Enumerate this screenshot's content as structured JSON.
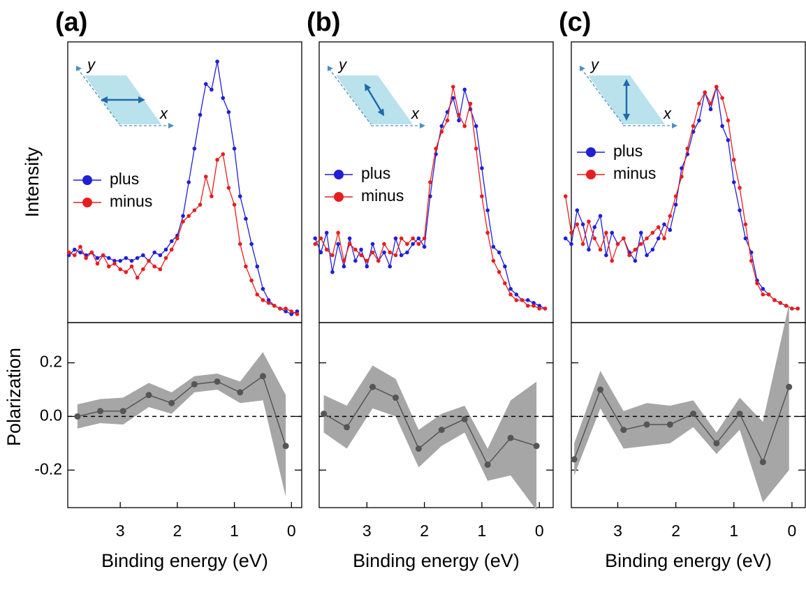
{
  "chart_data": [
    {
      "type": "line",
      "title": "(a)",
      "ylabel": "Intensity",
      "legend": "left",
      "annotations": [
        "y",
        "x"
      ],
      "xlim": [
        3.92,
        -0.18
      ],
      "ylim": [
        0,
        1
      ],
      "x": [
        3.9,
        3.8,
        3.7,
        3.6,
        3.5,
        3.4,
        3.3,
        3.2,
        3.1,
        3.0,
        2.9,
        2.8,
        2.7,
        2.6,
        2.5,
        2.4,
        2.3,
        2.2,
        2.1,
        2.0,
        1.9,
        1.8,
        1.7,
        1.6,
        1.5,
        1.4,
        1.3,
        1.2,
        1.1,
        1.0,
        0.9,
        0.8,
        0.7,
        0.6,
        0.5,
        0.4,
        0.3,
        0.2,
        0.1,
        0.0,
        -0.1
      ],
      "series": [
        {
          "name": "plus",
          "color": "#1f1fd6",
          "values": [
            0.24,
            0.26,
            0.25,
            0.24,
            0.25,
            0.23,
            0.24,
            0.23,
            0.22,
            0.22,
            0.23,
            0.22,
            0.23,
            0.24,
            0.22,
            0.25,
            0.24,
            0.26,
            0.29,
            0.31,
            0.38,
            0.5,
            0.62,
            0.74,
            0.85,
            0.83,
            0.93,
            0.8,
            0.75,
            0.62,
            0.45,
            0.37,
            0.28,
            0.2,
            0.12,
            0.08,
            0.06,
            0.05,
            0.04,
            0.03,
            0.04
          ]
        },
        {
          "name": "minus",
          "color": "#e61e1e",
          "values": [
            0.25,
            0.24,
            0.27,
            0.23,
            0.25,
            0.21,
            0.24,
            0.2,
            0.21,
            0.19,
            0.18,
            0.2,
            0.16,
            0.19,
            0.22,
            0.2,
            0.19,
            0.23,
            0.26,
            0.3,
            0.36,
            0.38,
            0.4,
            0.42,
            0.52,
            0.45,
            0.58,
            0.6,
            0.48,
            0.42,
            0.28,
            0.2,
            0.15,
            0.1,
            0.08,
            0.07,
            0.06,
            0.05,
            0.05,
            0.04,
            0.03
          ]
        }
      ]
    },
    {
      "type": "errorband",
      "ylabel": "Polarization",
      "xlabel": "Binding energy (eV)",
      "color": "#555555",
      "band_color": "#a6a6a6",
      "xlim": [
        3.92,
        -0.18
      ],
      "ylim": [
        -0.34,
        0.35
      ],
      "xticks": [
        3,
        2,
        1,
        0
      ],
      "yticks": [
        -0.2,
        {
          "value": 0,
          "label": "0.0"
        },
        0.2
      ],
      "hline": 0,
      "x": [
        3.75,
        3.35,
        2.95,
        2.5,
        2.1,
        1.7,
        1.3,
        0.9,
        0.5,
        0.1
      ],
      "values": [
        0,
        0.02,
        0.02,
        0.08,
        0.05,
        0.12,
        0.13,
        0.09,
        0.15,
        -0.11
      ],
      "error": [
        0.045,
        0.045,
        0.05,
        0.045,
        0.04,
        0.03,
        0.03,
        0.04,
        0.09,
        0.19
      ]
    },
    {
      "type": "line",
      "title": "(b)",
      "legend": "left",
      "annotations": [
        "y",
        "x"
      ],
      "xlim": [
        3.83,
        -0.24
      ],
      "ylim": [
        0,
        1
      ],
      "x": [
        3.9,
        3.8,
        3.7,
        3.6,
        3.5,
        3.4,
        3.3,
        3.2,
        3.1,
        3.0,
        2.9,
        2.8,
        2.7,
        2.6,
        2.5,
        2.4,
        2.3,
        2.2,
        2.1,
        2.0,
        1.9,
        1.8,
        1.7,
        1.6,
        1.5,
        1.4,
        1.3,
        1.2,
        1.1,
        1.0,
        0.9,
        0.8,
        0.7,
        0.6,
        0.5,
        0.4,
        0.3,
        0.2,
        0.1,
        0.0,
        -0.1
      ],
      "series": [
        {
          "name": "plus",
          "color": "#1f1fd6",
          "values": [
            0.3,
            0.25,
            0.32,
            0.18,
            0.28,
            0.2,
            0.3,
            0.22,
            0.26,
            0.2,
            0.28,
            0.22,
            0.25,
            0.2,
            0.3,
            0.24,
            0.25,
            0.28,
            0.3,
            0.27,
            0.45,
            0.6,
            0.7,
            0.75,
            0.8,
            0.72,
            0.83,
            0.76,
            0.7,
            0.55,
            0.4,
            0.27,
            0.25,
            0.2,
            0.12,
            0.1,
            0.08,
            0.08,
            0.07,
            0.06,
            0.05
          ]
        },
        {
          "name": "minus",
          "color": "#e61e1e",
          "values": [
            0.28,
            0.3,
            0.26,
            0.24,
            0.32,
            0.22,
            0.28,
            0.26,
            0.24,
            0.22,
            0.25,
            0.22,
            0.28,
            0.25,
            0.24,
            0.3,
            0.28,
            0.3,
            0.28,
            0.3,
            0.5,
            0.62,
            0.68,
            0.72,
            0.84,
            0.74,
            0.7,
            0.78,
            0.62,
            0.45,
            0.32,
            0.22,
            0.18,
            0.14,
            0.1,
            0.08,
            0.08,
            0.06,
            0.06,
            0.05,
            0.05
          ]
        }
      ]
    },
    {
      "type": "errorband",
      "xlabel": "Binding energy (eV)",
      "color": "#555555",
      "band_color": "#a6a6a6",
      "xlim": [
        3.83,
        -0.24
      ],
      "ylim": [
        -0.34,
        0.35
      ],
      "xticks": [
        3,
        2,
        1,
        0
      ],
      "yticks": [
        -0.2,
        {
          "value": 0,
          "label": "0.0"
        },
        0.2
      ],
      "hline": 0,
      "x": [
        3.75,
        3.35,
        2.9,
        2.5,
        2.1,
        1.7,
        1.3,
        0.9,
        0.5,
        0.05
      ],
      "values": [
        0.01,
        -0.04,
        0.11,
        0.07,
        -0.12,
        -0.05,
        -0.01,
        -0.18,
        -0.08,
        -0.11
      ],
      "error": [
        0.07,
        0.08,
        0.08,
        0.07,
        0.07,
        0.06,
        0.05,
        0.06,
        0.14,
        0.24
      ]
    },
    {
      "type": "line",
      "title": "(c)",
      "legend": "left",
      "annotations": [
        "y",
        "x"
      ],
      "xlim": [
        3.8,
        -0.23
      ],
      "ylim": [
        0,
        1
      ],
      "x": [
        3.9,
        3.8,
        3.7,
        3.6,
        3.5,
        3.4,
        3.3,
        3.2,
        3.1,
        3.0,
        2.9,
        2.8,
        2.7,
        2.6,
        2.5,
        2.4,
        2.3,
        2.2,
        2.1,
        2.0,
        1.9,
        1.8,
        1.7,
        1.6,
        1.5,
        1.4,
        1.3,
        1.2,
        1.1,
        1.0,
        0.9,
        0.8,
        0.7,
        0.6,
        0.5,
        0.4,
        0.3,
        0.2,
        0.1,
        0.0,
        -0.1
      ],
      "series": [
        {
          "name": "plus",
          "color": "#1f1fd6",
          "values": [
            0.3,
            0.28,
            0.4,
            0.35,
            0.26,
            0.34,
            0.38,
            0.24,
            0.32,
            0.28,
            0.3,
            0.25,
            0.22,
            0.32,
            0.24,
            0.26,
            0.3,
            0.35,
            0.33,
            0.42,
            0.55,
            0.6,
            0.68,
            0.72,
            0.82,
            0.76,
            0.84,
            0.7,
            0.65,
            0.5,
            0.4,
            0.3,
            0.25,
            0.15,
            0.12,
            0.1,
            0.08,
            0.07,
            0.06,
            0.05,
            0.05
          ]
        },
        {
          "name": "minus",
          "color": "#e61e1e",
          "values": [
            0.45,
            0.32,
            0.35,
            0.28,
            0.36,
            0.3,
            0.26,
            0.32,
            0.22,
            0.28,
            0.3,
            0.24,
            0.26,
            0.28,
            0.3,
            0.32,
            0.34,
            0.3,
            0.38,
            0.45,
            0.52,
            0.62,
            0.7,
            0.78,
            0.82,
            0.78,
            0.84,
            0.8,
            0.72,
            0.58,
            0.48,
            0.35,
            0.22,
            0.14,
            0.1,
            0.1,
            0.08,
            0.07,
            0.06,
            0.05,
            0.05
          ]
        }
      ]
    },
    {
      "type": "errorband",
      "xlabel": "Binding energy (eV)",
      "color": "#555555",
      "band_color": "#a6a6a6",
      "xlim": [
        3.8,
        -0.23
      ],
      "ylim": [
        -0.34,
        0.35
      ],
      "xticks": [
        3,
        2,
        1,
        0
      ],
      "yticks": [
        -0.2,
        {
          "value": 0,
          "label": "0.0"
        },
        0.2
      ],
      "hline": 0,
      "x": [
        3.75,
        3.3,
        2.9,
        2.5,
        2.1,
        1.7,
        1.3,
        0.9,
        0.5,
        0.05
      ],
      "values": [
        -0.16,
        0.1,
        -0.05,
        -0.03,
        -0.03,
        0.01,
        -0.1,
        0.01,
        -0.17,
        0.11
      ],
      "error": [
        0.06,
        0.07,
        0.07,
        0.08,
        0.07,
        0.05,
        0.04,
        0.06,
        0.15,
        0.31
      ]
    }
  ]
}
